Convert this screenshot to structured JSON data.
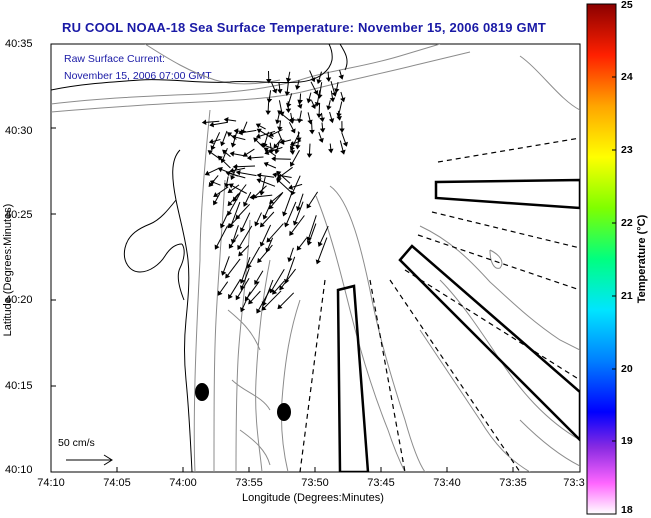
{
  "title": "RU COOL  NOAA-18  Sea Surface Temperature:  November 15, 2006 0819 GMT",
  "annotation": {
    "line1": "Raw Surface Current:",
    "line2": "November 15, 2006 07:00 GMT"
  },
  "axes": {
    "xlabel": "Longitude (Degrees:Minutes)",
    "ylabel": "Latitude (Degrees:Minutes)",
    "x_ticks": [
      "74:10",
      "74:05",
      "74:00",
      "73:55",
      "73:50",
      "73:45",
      "73:40",
      "73:35",
      "73:3"
    ],
    "y_ticks": [
      "40:35",
      "40:30",
      "40:25",
      "40:20",
      "40:15",
      "40:10"
    ]
  },
  "scale": {
    "label": "50 cm/s"
  },
  "colorbar": {
    "label": "Temperature (°C)",
    "ticks": [
      "25",
      "24",
      "23",
      "22",
      "21",
      "20",
      "19",
      "18"
    ],
    "min": 18,
    "max": 25
  },
  "colors": {
    "title": "#1a1aa6",
    "coast": "#000000",
    "bathymetry": "#8c8c8c"
  }
}
